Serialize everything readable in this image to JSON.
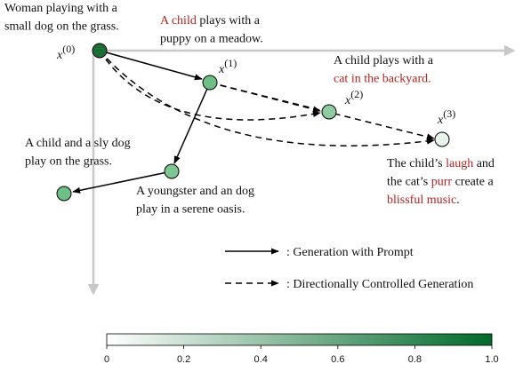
{
  "captions": [
    {
      "lines": [
        [
          {
            "text": "Woman playing with a",
            "color": "#111111"
          }
        ],
        [
          {
            "text": "small dog on the grass.",
            "color": "#111111"
          }
        ]
      ]
    },
    {
      "lines": [
        [
          {
            "text": "A child",
            "color": "#b22222"
          },
          {
            "text": " plays with a",
            "color": "#111111"
          }
        ],
        [
          {
            "text": "puppy on a meadow.",
            "color": "#111111"
          }
        ]
      ]
    },
    {
      "lines": [
        [
          {
            "text": "A child plays with a",
            "color": "#111111"
          }
        ],
        [
          {
            "text": "cat in the backyard.",
            "color": "#b22222"
          }
        ]
      ]
    },
    {
      "lines": [
        [
          {
            "text": "A child and a sly dog",
            "color": "#111111"
          }
        ],
        [
          {
            "text": "play on the grass.",
            "color": "#111111"
          }
        ]
      ]
    },
    {
      "lines": [
        [
          {
            "text": "A youngster and an dog",
            "color": "#111111"
          }
        ],
        [
          {
            "text": "play in a serene oasis.",
            "color": "#111111"
          }
        ]
      ]
    },
    {
      "lines": [
        [
          {
            "text": "The child’s ",
            "color": "#111111"
          },
          {
            "text": "laugh",
            "color": "#b22222"
          },
          {
            "text": " and",
            "color": "#111111"
          }
        ],
        [
          {
            "text": "the cat’s ",
            "color": "#111111"
          },
          {
            "text": "purr",
            "color": "#b22222"
          },
          {
            "text": " create a",
            "color": "#111111"
          }
        ],
        [
          {
            "text": "blissful music",
            "color": "#b22222"
          },
          {
            "text": ".",
            "color": "#111111"
          }
        ]
      ]
    }
  ],
  "nodes": [
    {
      "color": "#1b6e36",
      "label": {
        "base": "x",
        "sup": "(0)"
      }
    },
    {
      "color": "#6dbf86",
      "label": {
        "base": "x",
        "sup": "(1)"
      }
    },
    {
      "color": "#8fcc9f",
      "label": {
        "base": "x",
        "sup": "(2)"
      }
    },
    {
      "color": "#e8f4ea",
      "label": {
        "base": "x",
        "sup": "(3)"
      }
    },
    {
      "color": "#7ec692"
    },
    {
      "color": "#6dbf86"
    }
  ],
  "legend": [
    {
      "style": "solid",
      "label": ":  Generation with Prompt"
    },
    {
      "style": "dashed",
      "label": ":  Directionally Controlled Generation"
    }
  ],
  "colorbar": {
    "colormap": [
      "#ffffff",
      "#00692a"
    ],
    "lim": [
      0,
      1
    ],
    "ticks": [
      0,
      0.2,
      0.4,
      0.6,
      0.8,
      {
        "value": 1,
        "label": "1.0"
      }
    ]
  }
}
